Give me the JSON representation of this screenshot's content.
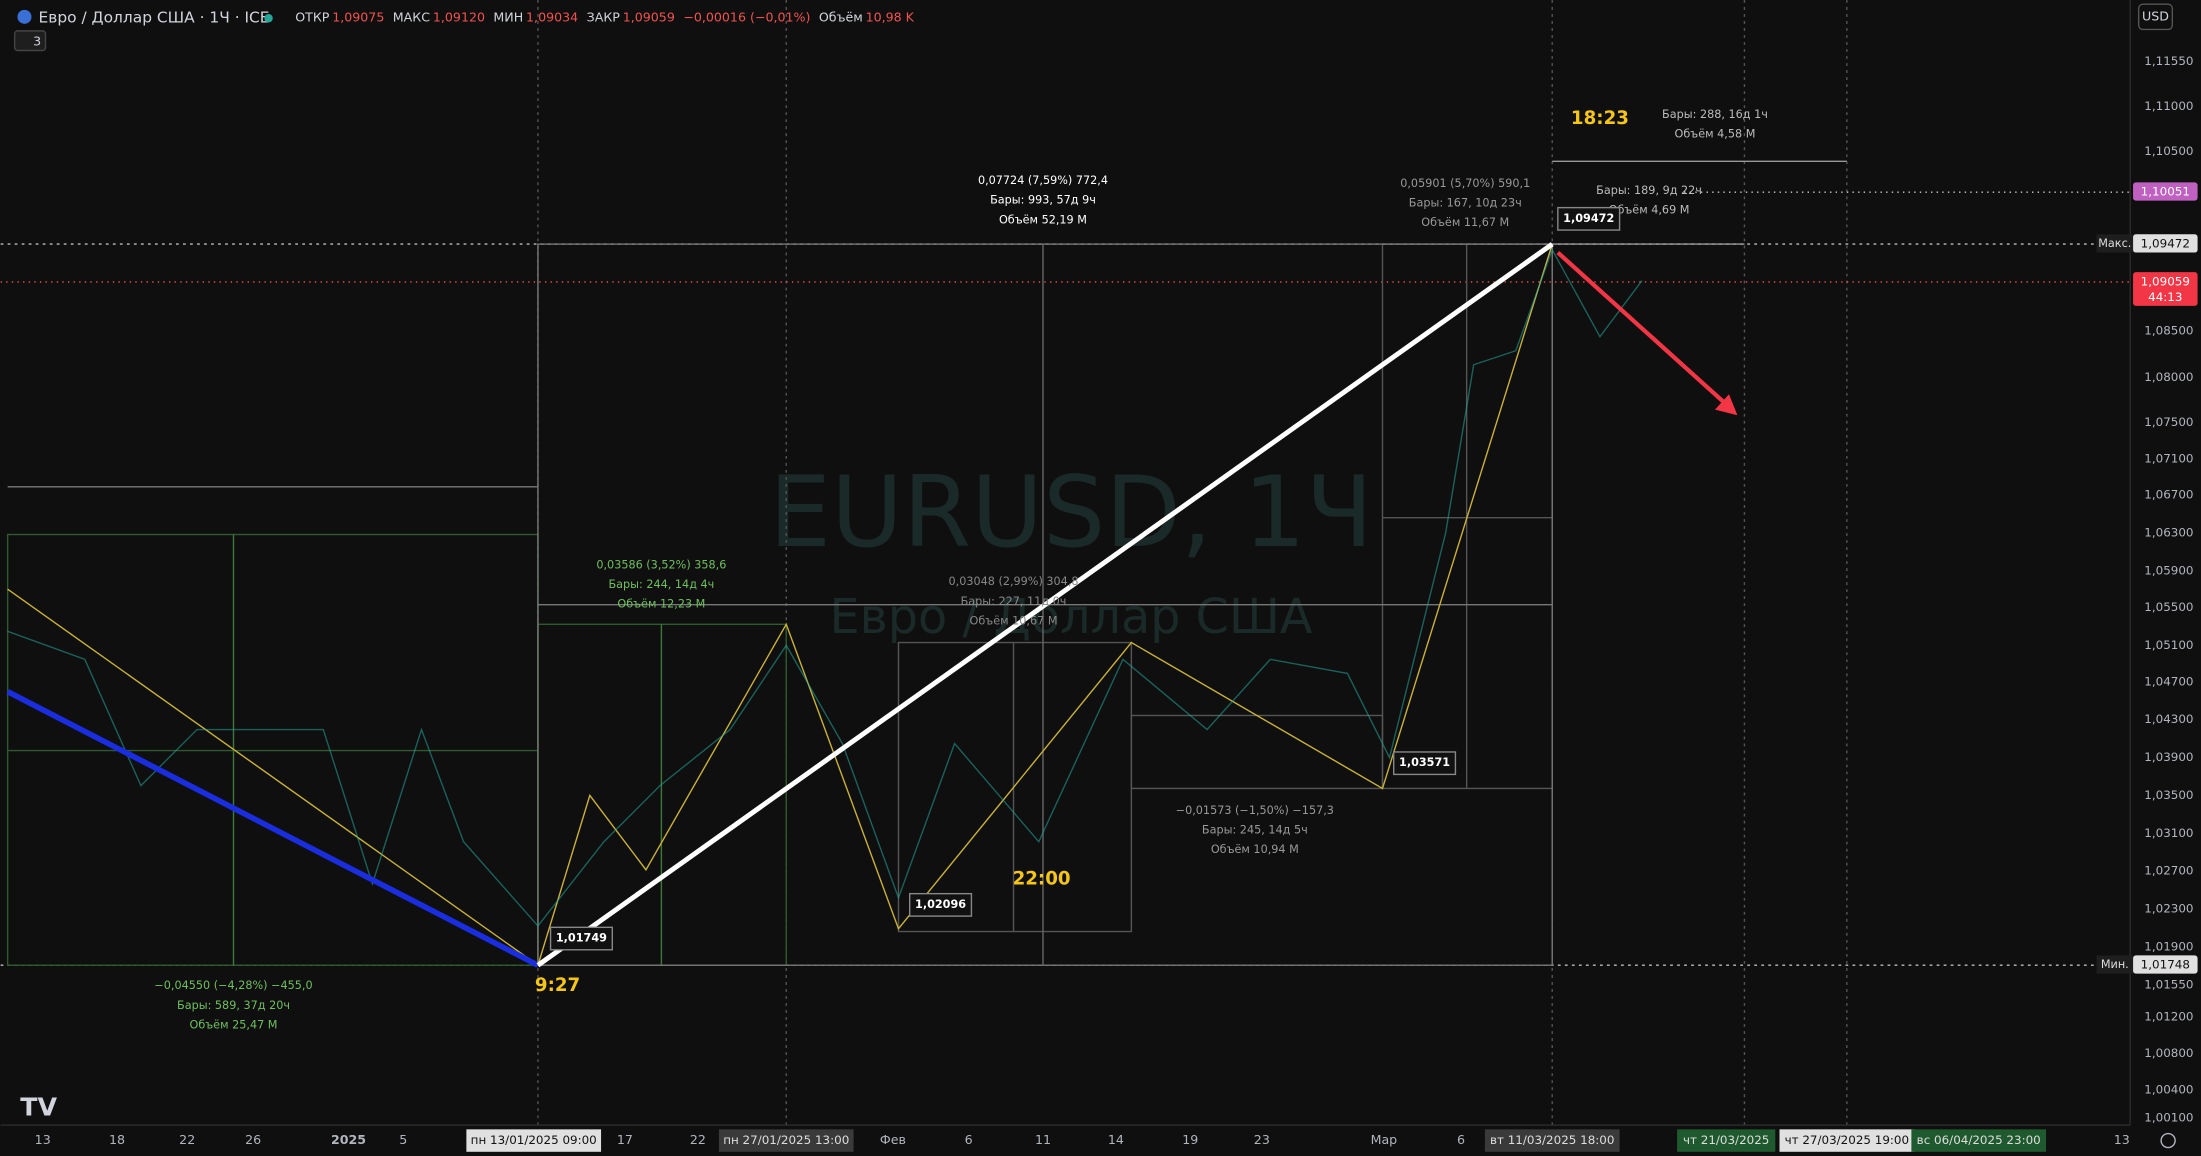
{
  "header": {
    "symbol": "Евро / Доллар США · 1Ч · ICE",
    "ohlc": [
      {
        "label": "ОТКР",
        "value": "1,09075"
      },
      {
        "label": "МАКС",
        "value": "1,09120"
      },
      {
        "label": "МИН",
        "value": "1,09034"
      },
      {
        "label": "ЗАКР",
        "value": "1,09059"
      }
    ],
    "change": "−0,00016 (−0,01%)",
    "volume_label": "Объём",
    "volume": "10,98 K",
    "indicator_count": "3"
  },
  "currency_button": "USD",
  "watermark": {
    "symbol": "EURUSD, 1Ч",
    "description": "Евро / Доллар США"
  },
  "price_axis": {
    "ticks": [
      "1,11550",
      "1,11000",
      "1,10500",
      "1,08500",
      "1,08000",
      "1,07500",
      "1,07100",
      "1,06700",
      "1,06300",
      "1,05900",
      "1,05500",
      "1,05100",
      "1,04700",
      "1,04300",
      "1,03900",
      "1,03500",
      "1,03100",
      "1,02700",
      "1,02300",
      "1,01900",
      "1,01550",
      "1,01200",
      "1,00800",
      "1,00400",
      "1,00100"
    ],
    "markers": [
      {
        "value": "1,10051"
      },
      {
        "label": "Макс.",
        "value": "1,09472"
      },
      {
        "value": "1,09059",
        "countdown": "44:13"
      },
      {
        "label": "Мин.",
        "value": "1,01748"
      }
    ]
  },
  "time_axis": {
    "ticks": [
      "13",
      "18",
      "22",
      "26",
      "2025",
      "5",
      "17",
      "22",
      "Фев",
      "6",
      "11",
      "14",
      "19",
      "23",
      "Мар",
      "6",
      "13"
    ],
    "highlights": [
      "пн 13/01/2025   09:00",
      "пн 27/01/2025   13:00",
      "вт 11/03/2025   18:00",
      "чт 21/03/2025",
      "чт 27/03/2025   19:00",
      "вс 06/04/2025   23:00"
    ]
  },
  "annotations": {
    "measurements": [
      {
        "lines": [
          "0,07724 (7,59%) 772,4",
          "Бары: 993, 57д 9ч",
          "Объём 52,19 M"
        ]
      },
      {
        "lines": [
          "0,05901 (5,70%) 590,1",
          "Бары: 167, 10д 23ч",
          "Объём 11,67 M"
        ]
      },
      {
        "lines": [
          "Бары: 288, 16д 1ч",
          "Объём 4,58 M"
        ]
      },
      {
        "lines": [
          "Бары: 189, 9д 22ч",
          "Объём 4,69 M"
        ]
      },
      {
        "lines": [
          "0,03586 (3,52%) 358,6",
          "Бары: 244, 14д 4ч",
          "Объём 12,23 M"
        ]
      },
      {
        "lines": [
          "0,03048 (2,99%) 304,8",
          "Бары: 227, 11д 0ч",
          "Объём 10,67 M"
        ]
      },
      {
        "lines": [
          "−0,04550 (−4,28%) −455,0",
          "Бары: 589, 37д 20ч",
          "Объём 25,47 M"
        ]
      },
      {
        "lines": [
          "−0,01573 (−1,50%) −157,3",
          "Бары: 245, 14д 5ч",
          "Объём 10,94 M"
        ]
      }
    ],
    "pivots": [
      "1,01749",
      "1,02096",
      "1,03571",
      "1,09472"
    ],
    "times": [
      "9:27",
      "22:00",
      "18:23"
    ]
  }
}
